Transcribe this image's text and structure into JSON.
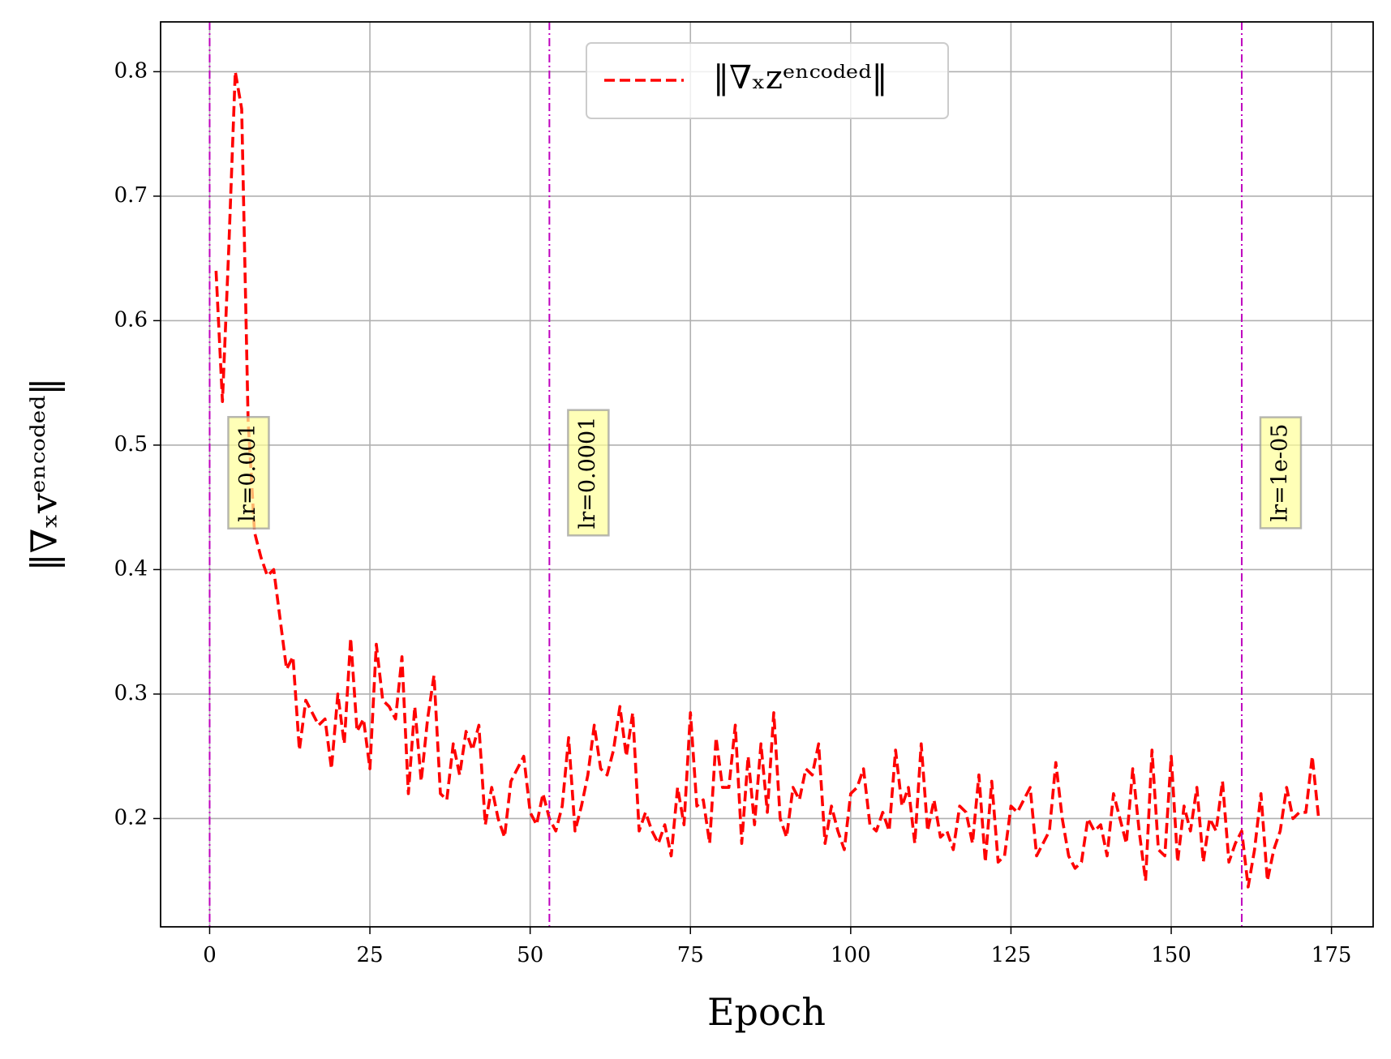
{
  "chart_data": {
    "type": "line",
    "xlabel": "Epoch",
    "ylabel": "‖∇ₓvᵉⁿᶜᵒᵈᵉᵈ‖",
    "xlim": [
      -7.65,
      181.5
    ],
    "ylim": [
      0.113,
      0.84
    ],
    "xticks": [
      0,
      25,
      50,
      75,
      100,
      125,
      150,
      175
    ],
    "yticks": [
      0.2,
      0.3,
      0.4,
      0.5,
      0.6,
      0.7,
      0.8
    ],
    "grid": true,
    "legend": "upper center",
    "vline_color": "#bf00bf",
    "vlines": [
      {
        "x": 0,
        "label": "lr=0.001"
      },
      {
        "x": 53,
        "label": "lr=0.0001"
      },
      {
        "x": 161,
        "label": "lr=1e-05"
      }
    ],
    "series": [
      {
        "name": "‖∇ₓzᵉⁿᶜᵒᵈᵉᵈ‖",
        "color": "#ff0000",
        "x": [
          1,
          2,
          3,
          4,
          5,
          6,
          7,
          8,
          9,
          10,
          11,
          12,
          13,
          14,
          15,
          16,
          17,
          18,
          19,
          20,
          21,
          22,
          23,
          24,
          25,
          26,
          27,
          28,
          29,
          30,
          31,
          32,
          33,
          34,
          35,
          36,
          37,
          38,
          39,
          40,
          41,
          42,
          43,
          44,
          45,
          46,
          47,
          48,
          49,
          50,
          51,
          52,
          53,
          54,
          55,
          56,
          57,
          58,
          59,
          60,
          61,
          62,
          63,
          64,
          65,
          66,
          67,
          68,
          69,
          70,
          71,
          72,
          73,
          74,
          75,
          76,
          77,
          78,
          79,
          80,
          81,
          82,
          83,
          84,
          85,
          86,
          87,
          88,
          89,
          90,
          91,
          92,
          93,
          94,
          95,
          96,
          97,
          98,
          99,
          100,
          101,
          102,
          103,
          104,
          105,
          106,
          107,
          108,
          109,
          110,
          111,
          112,
          113,
          114,
          115,
          116,
          117,
          118,
          119,
          120,
          121,
          122,
          123,
          124,
          125,
          126,
          127,
          128,
          129,
          130,
          131,
          132,
          133,
          134,
          135,
          136,
          137,
          138,
          139,
          140,
          141,
          142,
          143,
          144,
          145,
          146,
          147,
          148,
          149,
          150,
          151,
          152,
          153,
          154,
          155,
          156,
          157,
          158,
          159,
          160,
          161,
          162,
          163,
          164,
          165,
          166,
          167,
          168,
          169,
          170,
          171,
          172,
          173
        ],
        "values": [
          0.64,
          0.535,
          0.66,
          0.8,
          0.77,
          0.52,
          0.43,
          0.41,
          0.395,
          0.4,
          0.36,
          0.32,
          0.33,
          0.255,
          0.295,
          0.285,
          0.275,
          0.28,
          0.24,
          0.3,
          0.26,
          0.345,
          0.27,
          0.28,
          0.24,
          0.34,
          0.295,
          0.29,
          0.28,
          0.33,
          0.22,
          0.29,
          0.23,
          0.28,
          0.315,
          0.22,
          0.215,
          0.26,
          0.235,
          0.27,
          0.255,
          0.275,
          0.195,
          0.225,
          0.2,
          0.185,
          0.23,
          0.24,
          0.25,
          0.205,
          0.195,
          0.22,
          0.2,
          0.19,
          0.21,
          0.265,
          0.19,
          0.21,
          0.235,
          0.275,
          0.24,
          0.235,
          0.255,
          0.29,
          0.25,
          0.285,
          0.19,
          0.205,
          0.19,
          0.18,
          0.195,
          0.17,
          0.225,
          0.195,
          0.285,
          0.21,
          0.215,
          0.18,
          0.265,
          0.225,
          0.225,
          0.275,
          0.18,
          0.25,
          0.195,
          0.26,
          0.205,
          0.285,
          0.2,
          0.185,
          0.225,
          0.215,
          0.24,
          0.235,
          0.26,
          0.18,
          0.21,
          0.19,
          0.175,
          0.22,
          0.225,
          0.24,
          0.195,
          0.19,
          0.205,
          0.19,
          0.255,
          0.21,
          0.225,
          0.18,
          0.26,
          0.19,
          0.215,
          0.185,
          0.19,
          0.175,
          0.21,
          0.205,
          0.18,
          0.235,
          0.165,
          0.23,
          0.165,
          0.17,
          0.21,
          0.205,
          0.215,
          0.225,
          0.17,
          0.18,
          0.19,
          0.245,
          0.2,
          0.17,
          0.16,
          0.165,
          0.2,
          0.19,
          0.195,
          0.17,
          0.22,
          0.2,
          0.18,
          0.24,
          0.19,
          0.15,
          0.255,
          0.175,
          0.17,
          0.25,
          0.165,
          0.21,
          0.19,
          0.225,
          0.165,
          0.2,
          0.19,
          0.23,
          0.165,
          0.18,
          0.19,
          0.145,
          0.175,
          0.22,
          0.15,
          0.175,
          0.19,
          0.225,
          0.2,
          0.205,
          0.205,
          0.25,
          0.2
        ]
      }
    ]
  }
}
